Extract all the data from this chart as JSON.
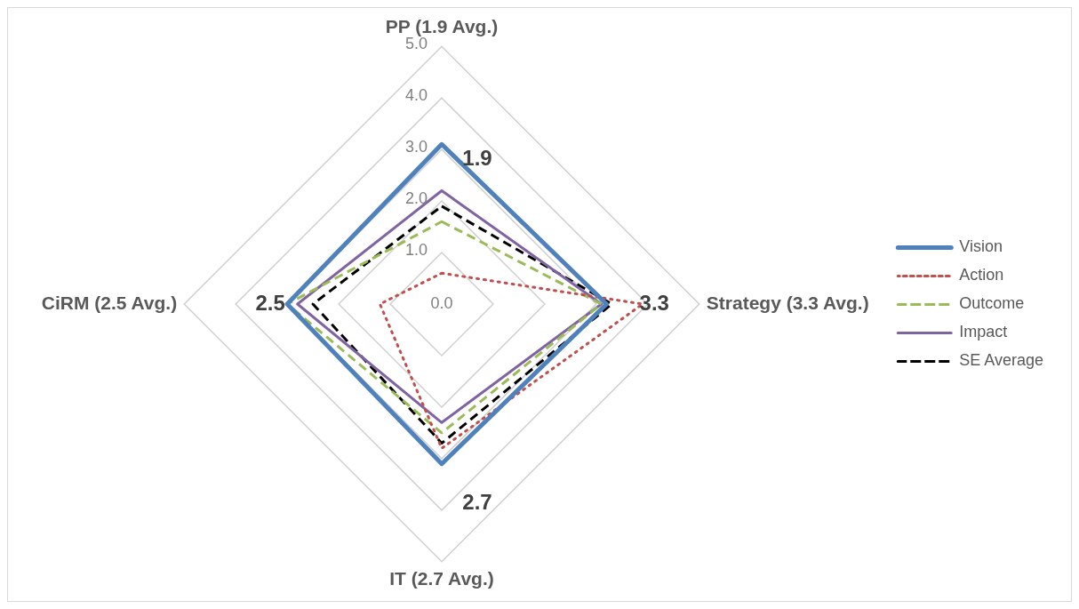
{
  "chart_data": {
    "type": "radar",
    "categories": [
      "PP (1.9 Avg.)",
      "Strategy (3.3 Avg.)",
      "IT (2.7 Avg.)",
      "CiRM (2.5 Avg.)"
    ],
    "series": [
      {
        "name": "Vision",
        "color": "#4f81bd",
        "line_style": "solid",
        "values": [
          3.1,
          3.2,
          3.1,
          3.0
        ]
      },
      {
        "name": "Action",
        "color": "#c0504d",
        "line_style": "dotted",
        "values": [
          0.6,
          3.9,
          2.8,
          1.2
        ]
      },
      {
        "name": "Outcome",
        "color": "#9bbb59",
        "line_style": "dashed",
        "values": [
          1.6,
          3.1,
          2.5,
          3.0
        ]
      },
      {
        "name": "Impact",
        "color": "#8064a2",
        "line_style": "solid",
        "values": [
          2.2,
          3.1,
          2.3,
          2.8
        ]
      },
      {
        "name": "SE Average",
        "color": "#000000",
        "line_style": "dashed",
        "values": [
          1.9,
          3.3,
          2.7,
          2.5
        ],
        "value_labels": [
          "1.9",
          "3.3",
          "2.7",
          "2.5"
        ]
      }
    ],
    "ylim": [
      0,
      5
    ],
    "yticks": [
      {
        "value": 0,
        "label": "0.0"
      },
      {
        "value": 1,
        "label": "1.0"
      },
      {
        "value": 2,
        "label": "2.0"
      },
      {
        "value": 3,
        "label": "3.0"
      },
      {
        "value": 4,
        "label": "4.0"
      },
      {
        "value": 5,
        "label": "5.0"
      }
    ],
    "grid": true,
    "legend": "right",
    "marker": "none"
  }
}
